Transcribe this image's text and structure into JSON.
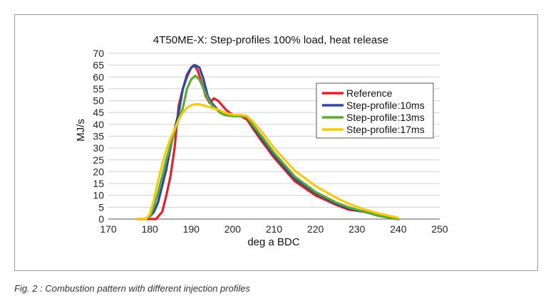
{
  "caption": {
    "prefix": "Fig. 2",
    "text": ": Combustion pattern with different injection profiles"
  },
  "chart_data": {
    "type": "line",
    "title": "4T50ME-X: Step-profiles 100% load, heat release",
    "xlabel": "deg a BDC",
    "ylabel": "MJ/s",
    "xlim": [
      170,
      250
    ],
    "ylim": [
      0,
      70
    ],
    "xticks": [
      170,
      180,
      190,
      200,
      210,
      220,
      230,
      240,
      250
    ],
    "yticks": [
      0,
      5,
      10,
      15,
      20,
      25,
      30,
      35,
      40,
      45,
      50,
      55,
      60,
      65,
      70
    ],
    "grid": "horizontal",
    "legend_position": "right",
    "series": [
      {
        "name": "Reference",
        "color": "#e41f26",
        "x": [
          177,
          180,
          181.5,
          183,
          184,
          185,
          186,
          187,
          188,
          189,
          190,
          190.7,
          191.5,
          192.5,
          193.5,
          194.5,
          195.5,
          196.5,
          197.5,
          198.5,
          200,
          202,
          203.5,
          205,
          207,
          210,
          215,
          220,
          225,
          228,
          232,
          235,
          240
        ],
        "y": [
          0,
          0,
          0,
          3,
          10,
          18,
          30,
          48,
          55,
          60,
          64,
          65,
          63,
          58,
          52,
          49,
          51,
          50,
          48,
          46,
          44,
          43.5,
          42,
          38,
          33,
          26,
          16,
          10,
          6,
          4,
          3,
          1.5,
          0
        ]
      },
      {
        "name": "Step-profile:10ms",
        "color": "#2b4ba0",
        "x": [
          177,
          179,
          180,
          181,
          182,
          183,
          184,
          185,
          186,
          187,
          188,
          189,
          190,
          191,
          192,
          193,
          194,
          195,
          196,
          197,
          198,
          200,
          202,
          203.5,
          205,
          207,
          210,
          215,
          220,
          225,
          228,
          232,
          235,
          240
        ],
        "y": [
          0,
          0,
          1,
          3,
          7,
          14,
          21,
          30,
          38,
          45,
          55,
          61,
          64,
          65,
          64,
          59,
          52,
          49,
          47,
          45,
          44,
          43.5,
          43.5,
          43,
          39,
          34,
          27,
          17,
          11,
          6.5,
          4.5,
          3,
          1.5,
          0
        ]
      },
      {
        "name": "Step-profile:13ms",
        "color": "#5aaa32",
        "x": [
          177,
          179,
          180,
          181,
          182,
          183,
          184,
          185,
          186,
          187,
          188,
          189,
          190,
          191,
          192,
          193,
          194,
          195,
          196,
          197,
          198,
          200,
          202,
          203.5,
          205,
          207,
          210,
          215,
          220,
          225,
          228,
          232,
          235,
          240
        ],
        "y": [
          0,
          0,
          1,
          5,
          11,
          18,
          25,
          31,
          37,
          42,
          47,
          55,
          59,
          60.5,
          59,
          55,
          51,
          48,
          46.5,
          45,
          44,
          43.5,
          43.5,
          43,
          39.5,
          35,
          28,
          18,
          11.5,
          7,
          5,
          3,
          1.5,
          0
        ]
      },
      {
        "name": "Step-profile:17ms",
        "color": "#f6c90e",
        "x": [
          177,
          179,
          180,
          181,
          182,
          183,
          184,
          185,
          186,
          187,
          188,
          189,
          190,
          191,
          192,
          193,
          194,
          195,
          196,
          197,
          198,
          200,
          202,
          203.5,
          205,
          207,
          210,
          215,
          220,
          225,
          228,
          232,
          235,
          240
        ],
        "y": [
          0,
          0,
          2,
          8,
          16,
          23,
          29,
          34,
          38,
          42,
          45,
          47,
          48,
          48.5,
          48.5,
          48,
          47.5,
          47,
          46.5,
          46,
          45,
          44,
          44,
          43.5,
          41,
          37,
          30,
          20.5,
          14,
          9,
          6.5,
          4,
          2.5,
          0.5
        ]
      }
    ]
  }
}
